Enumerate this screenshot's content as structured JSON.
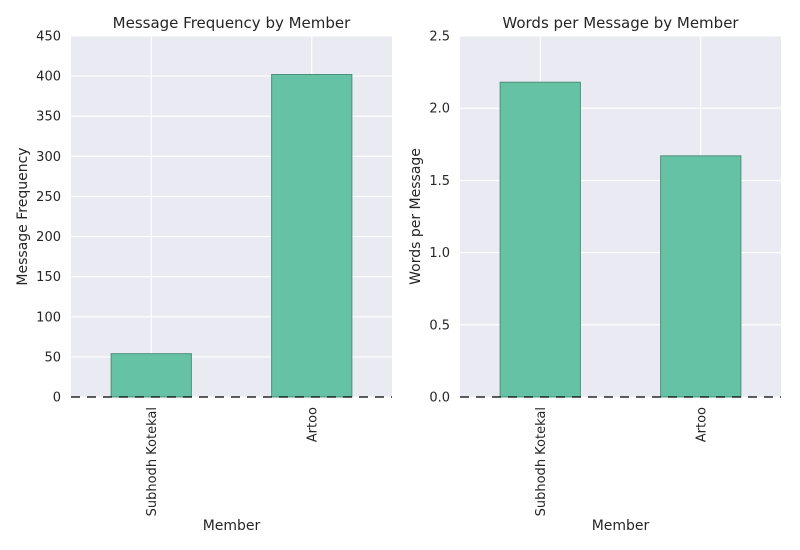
{
  "chart_data": [
    {
      "type": "bar",
      "title": "Message Frequency by Member",
      "xlabel": "Member",
      "ylabel": "Message Frequency",
      "categories": [
        "Subhodh Kotekal",
        "Artoo"
      ],
      "values": [
        54,
        402
      ],
      "ylim": [
        0,
        450
      ],
      "yticks": [
        "0",
        "50",
        "100",
        "150",
        "200",
        "250",
        "300",
        "350",
        "400",
        "450"
      ],
      "grid": true,
      "colors": {
        "bar": "#66c2a5",
        "bar_edge": "#4f8f7a",
        "background": "#eaeaf2",
        "grid": "#ffffff",
        "baseline": "#000000"
      }
    },
    {
      "type": "bar",
      "title": "Words per Message by Member",
      "xlabel": "Member",
      "ylabel": "Words per Message",
      "categories": [
        "Subhodh Kotekal",
        "Artoo"
      ],
      "values": [
        2.18,
        1.67
      ],
      "ylim": [
        0,
        2.5
      ],
      "yticks": [
        "0.0",
        "0.5",
        "1.0",
        "1.5",
        "2.0",
        "2.5"
      ],
      "grid": true,
      "colors": {
        "bar": "#66c2a5",
        "bar_edge": "#4f8f7a",
        "background": "#eaeaf2",
        "grid": "#ffffff",
        "baseline": "#000000"
      }
    }
  ]
}
